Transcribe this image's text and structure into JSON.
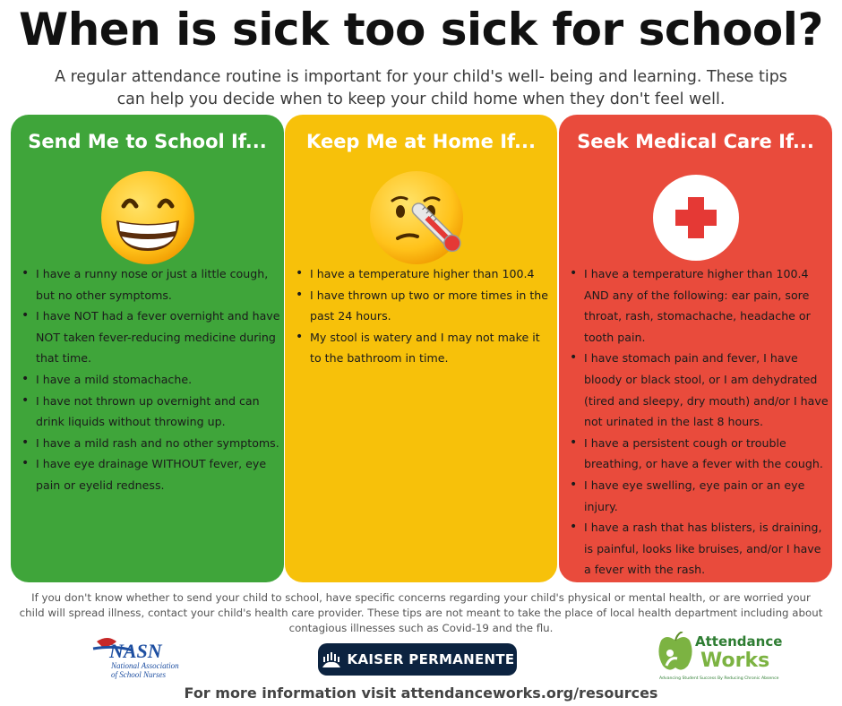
{
  "title": "When is sick too sick for school?",
  "subtitle_line1": "A regular attendance routine is important for your child's well- being and learning. These tips",
  "subtitle_line2": "can help you decide when to keep your child home when they don't feel well.",
  "columns": [
    {
      "heading": "Send Me to School If...",
      "color": "#3fa53a",
      "icon": "grinning-face-icon",
      "items": [
        "I have a runny nose or just a little cough, but no other symptoms.",
        "I have NOT had a fever overnight and have NOT taken fever-reducing medicine during that time.",
        "I have a mild stomachache.",
        "I have not thrown up overnight and can drink liquids without throwing up.",
        "I have a mild rash and no other symptoms.",
        "I have eye drainage WITHOUT fever, eye pain or eyelid redness."
      ]
    },
    {
      "heading": "Keep Me at Home If...",
      "color": "#f7c10a",
      "icon": "face-with-thermometer-icon",
      "items": [
        "I have a temperature higher than 100.4",
        "I have thrown up two or more times in the past 24 hours.",
        "My stool is watery and I may not make it to the bathroom in time."
      ]
    },
    {
      "heading": "Seek Medical Care If...",
      "color": "#e94b3c",
      "icon": "medical-cross-icon",
      "items": [
        "I have a temperature higher than 100.4 AND any of the following: ear pain, sore throat, rash, stomachache, headache or tooth pain.",
        "I have stomach pain and fever, I have bloody or black stool, or I am dehydrated (tired and sleepy, dry mouth) and/or I have not urinated in the last 8 hours.",
        "I have a persistent cough or trouble breathing, or have a fever with the cough.",
        "I have eye swelling, eye pain or an eye injury.",
        "I have a rash that has blisters, is draining, is painful, looks like bruises, and/or I have a fever with the rash."
      ]
    }
  ],
  "footer_note": "If you don't know whether to send your child to school, have specific concerns regarding your child's physical or mental health, or are worried your child will spread illness, contact your child's health care provider. These tips are not meant to take the place of local health department including about contagious illnesses such as Covid-19 and the flu.",
  "logos": {
    "nasn_abbr": "NASN",
    "nasn_name": "National Association of School Nurses",
    "kaiser": "KAISER PERMANENTE",
    "aw_line1": "Attendance",
    "aw_line2": "Works",
    "aw_tagline": "Advancing Student Success By Reducing Chronic Absence"
  },
  "more_info": "For more information visit attendanceworks.org/resources"
}
